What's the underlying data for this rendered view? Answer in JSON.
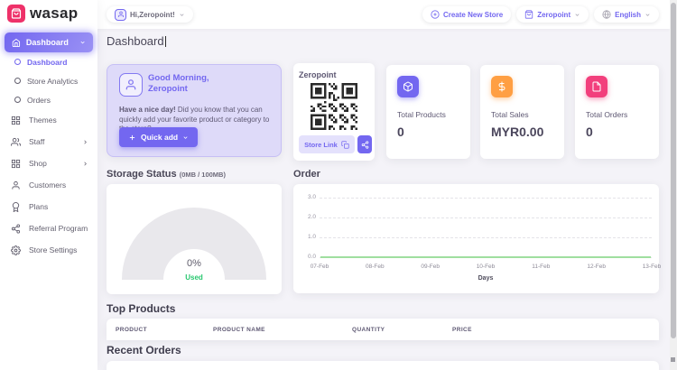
{
  "brand": {
    "name": "wasap"
  },
  "header": {
    "greeting": "Hi,Zeropoint!",
    "create_new_store": "Create New Store",
    "store_name": "Zeropoint",
    "language": "English"
  },
  "sidebar": {
    "active_label": "Dashboard",
    "sub_items": [
      {
        "label": "Dashboard"
      },
      {
        "label": "Store Analytics"
      },
      {
        "label": "Orders"
      }
    ],
    "items": [
      {
        "label": "Themes"
      },
      {
        "label": "Staff"
      },
      {
        "label": "Shop"
      },
      {
        "label": "Customers"
      },
      {
        "label": "Plans"
      },
      {
        "label": "Referral Program"
      },
      {
        "label": "Store Settings"
      }
    ]
  },
  "page_title": "Dashboard",
  "greeting_card": {
    "title_line1": "Good Morning,",
    "title_line2": "Zeropoint",
    "message_bold": "Have a nice day!",
    "message_rest": " Did you know that you can quickly add your favorite product or category to the store?",
    "quick_add": "Quick add"
  },
  "qr_card": {
    "store_name": "Zeropoint",
    "store_link": "Store Link"
  },
  "stats": [
    {
      "label": "Total Products",
      "value": "0",
      "icon": "box-icon",
      "accent": "#7367f0"
    },
    {
      "label": "Total Sales",
      "value": "MYR0.00",
      "icon": "dollar-icon",
      "accent": "#ff9f43"
    },
    {
      "label": "Total Orders",
      "value": "0",
      "icon": "file-icon",
      "accent": "#f23f7c"
    }
  ],
  "storage": {
    "title": "Storage Status",
    "subtitle": "(0MB / 100MB)",
    "percent": "0%",
    "used": "Used"
  },
  "order_section": {
    "title": "Order"
  },
  "chart_data": {
    "type": "line",
    "title": "Order",
    "x": [
      "07-Feb",
      "08-Feb",
      "09-Feb",
      "10-Feb",
      "11-Feb",
      "12-Feb",
      "13-Feb"
    ],
    "series": [
      {
        "name": "Orders",
        "values": [
          0,
          0,
          0,
          0,
          0,
          0,
          0
        ],
        "color": "#9fdf9f"
      }
    ],
    "xlabel": "Days",
    "ylim": [
      0,
      3
    ],
    "yticks": [
      "0.0",
      "1.0",
      "2.0",
      "3.0"
    ],
    "grid": "dashed-horizontal",
    "legend": "none"
  },
  "top_products": {
    "title": "Top Products",
    "columns": [
      "PRODUCT",
      "PRODUCT NAME",
      "QUANTITY",
      "PRICE"
    ],
    "rows": []
  },
  "recent_orders": {
    "title": "Recent Orders"
  },
  "colors": {
    "primary": "#7367f0",
    "success": "#28c76f",
    "warning": "#ff9f43",
    "pink": "#f23f7c",
    "logo": "#ee3169"
  }
}
